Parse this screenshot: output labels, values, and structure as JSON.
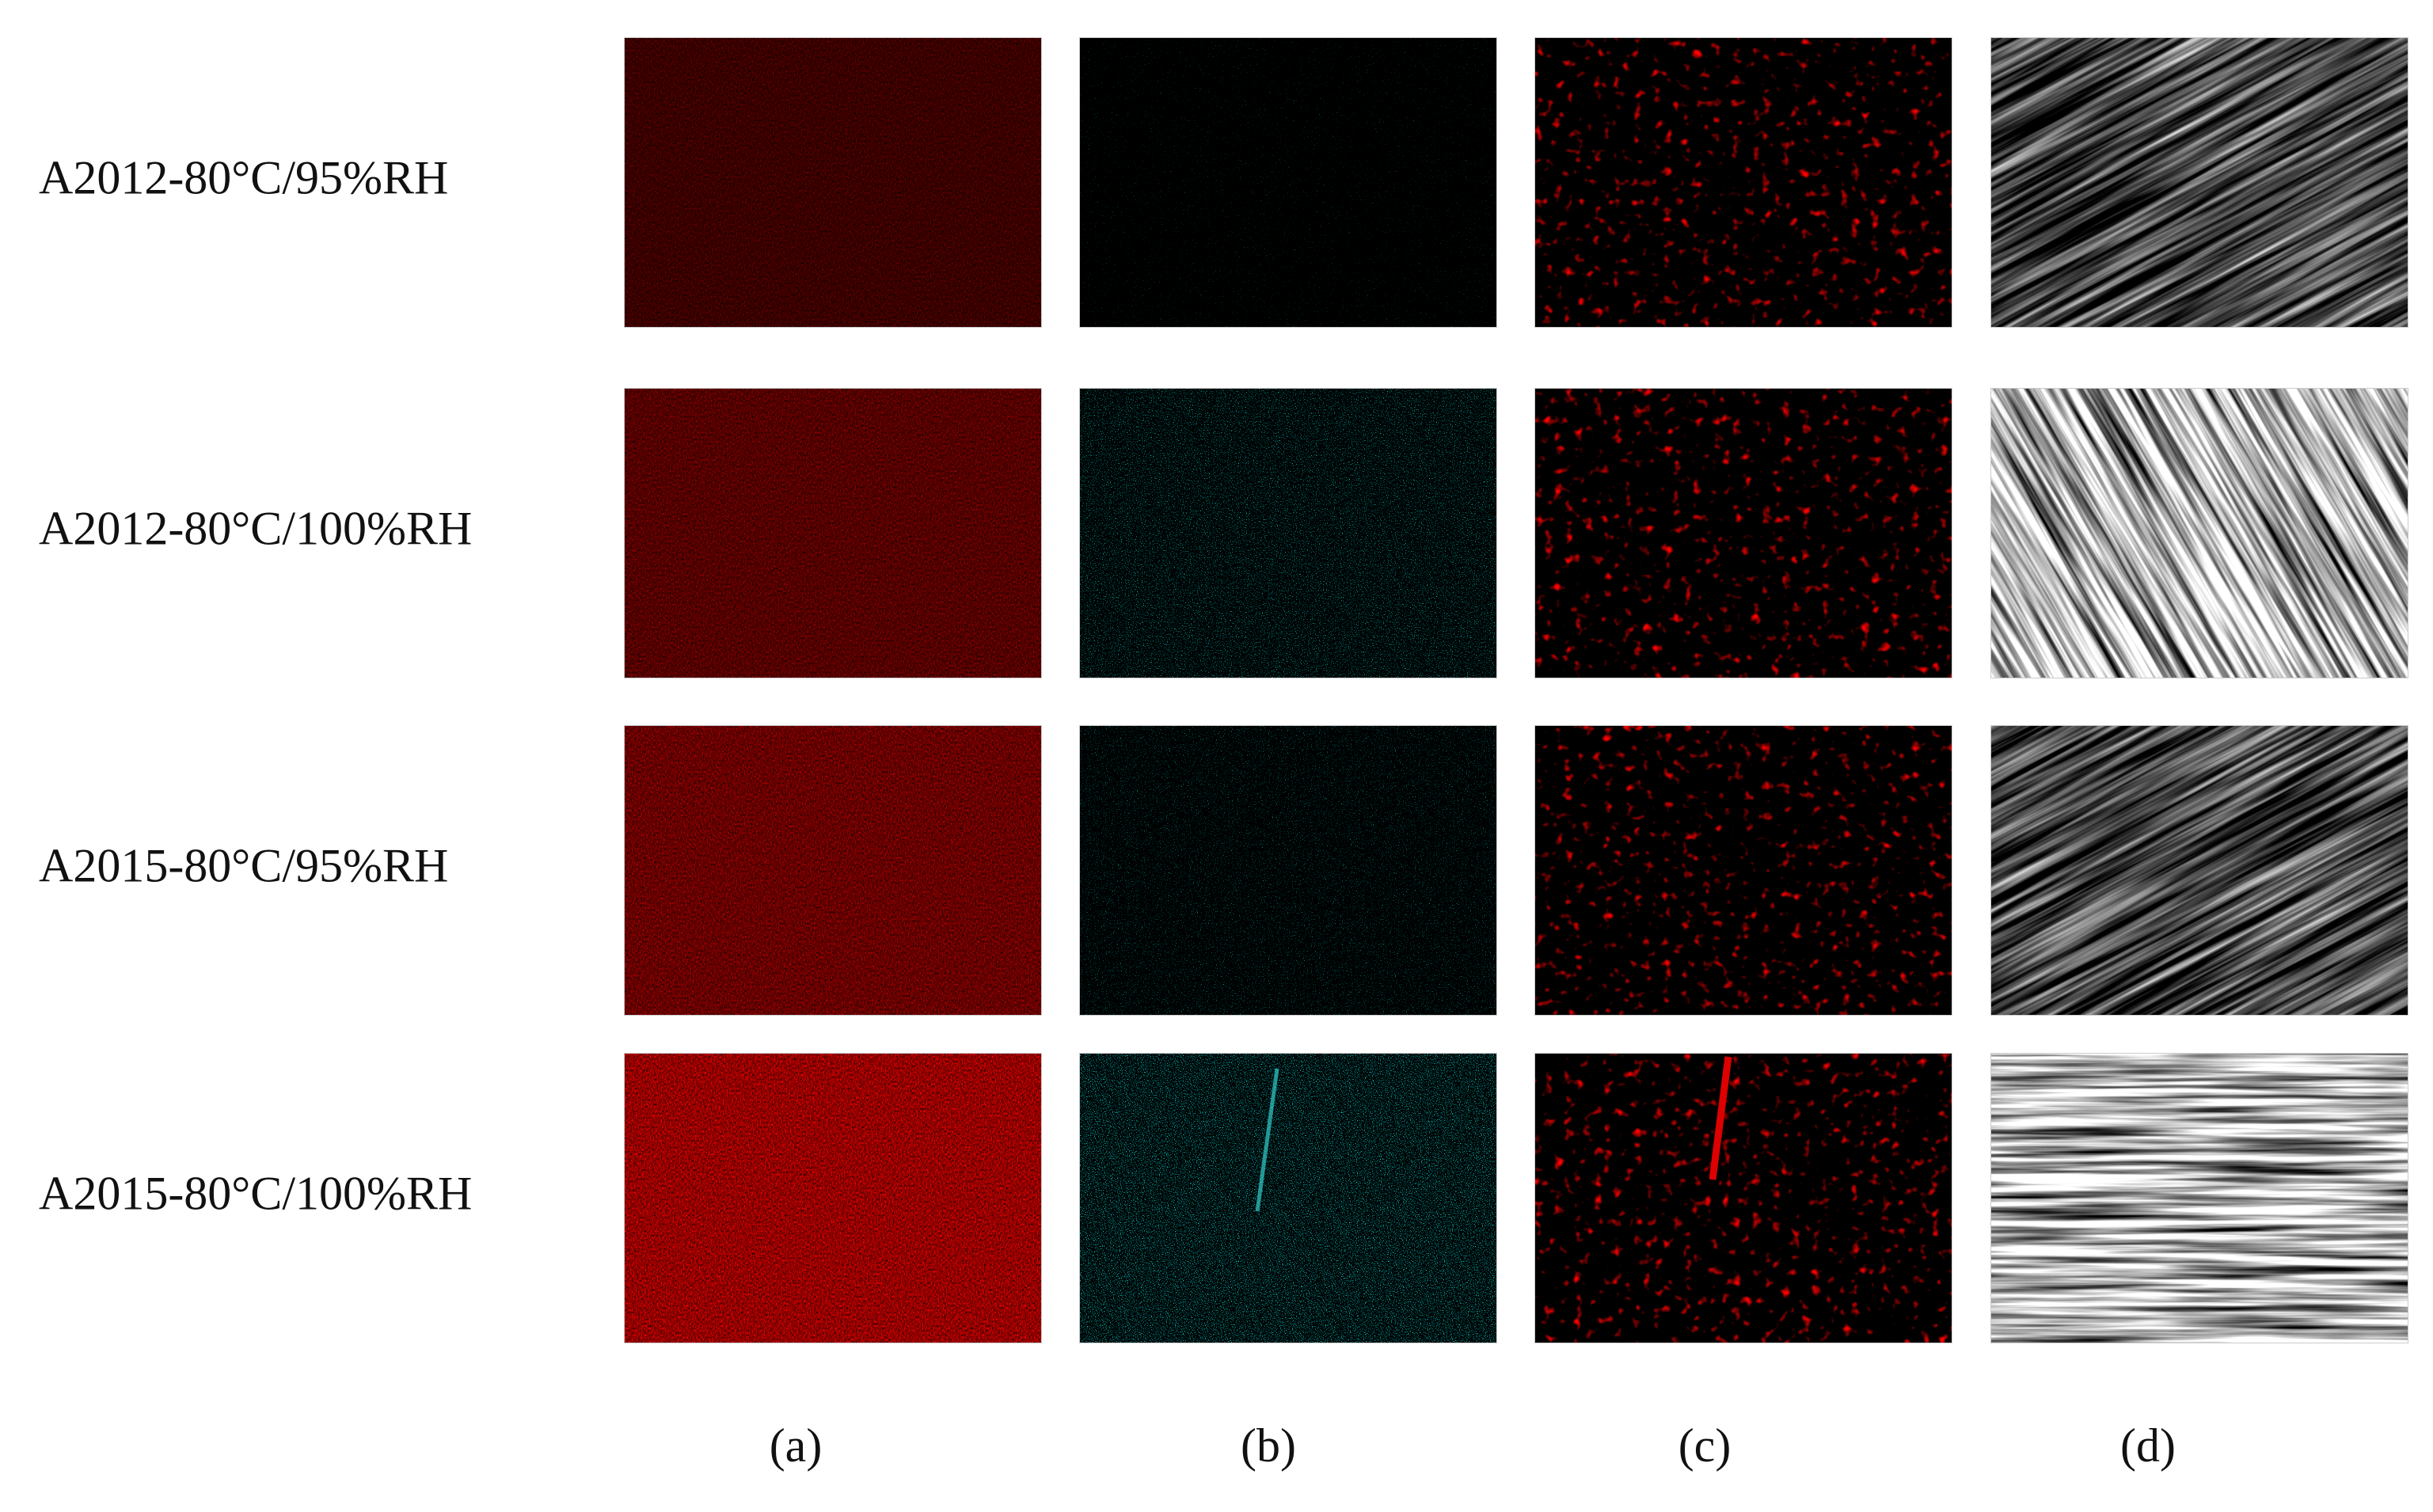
{
  "row_labels": [
    "A2012-80°C/95%RH",
    "A2012-80°C/100%RH",
    "A2015-80°C/95%RH",
    "A2015-80°C/100%RH"
  ],
  "column_labels": [
    "(a)",
    "(b)",
    "(c)",
    "(d)"
  ]
}
